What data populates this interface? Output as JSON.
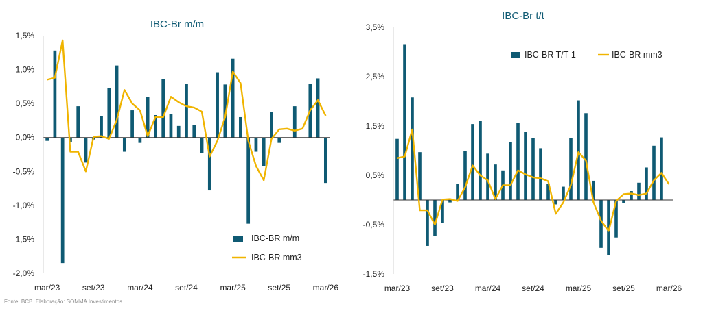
{
  "colors": {
    "bar": "#0f5a73",
    "line": "#f0b400",
    "axis": "#333333",
    "title": "#0f5a73",
    "text": "#222222"
  },
  "source_note": "Fonte: BCB. Elaboração: SOMMA Investimentos.",
  "chart_data": [
    {
      "type": "bar",
      "title": "IBC-Br m/m",
      "ylim": [
        -2.0,
        1.5
      ],
      "yticks": [
        1.5,
        1.0,
        0.5,
        0.0,
        -0.5,
        -1.0,
        -1.5,
        -2.0
      ],
      "ytick_labels": [
        "1,5%",
        "1,0%",
        "0,5%",
        "0,0%",
        "-0,5%",
        "-1,0%",
        "-1,5%",
        "-2,0%"
      ],
      "x_labels": [
        "mar/23",
        "set/23",
        "mar/24",
        "set/24",
        "mar/25",
        "set/25",
        "mar/26"
      ],
      "x_label_index": [
        0,
        6,
        12,
        18,
        24,
        30,
        36
      ],
      "legend_position": "bottom-right",
      "grid": false,
      "series": [
        {
          "name": "IBC-BR m/m",
          "kind": "bar",
          "values": [
            -0.05,
            1.28,
            -1.85,
            -0.07,
            0.46,
            -0.37,
            -0.03,
            0.31,
            0.73,
            1.06,
            -0.21,
            0.4,
            -0.08,
            0.6,
            0.33,
            0.86,
            0.35,
            0.17,
            0.79,
            0.18,
            -0.23,
            -0.78,
            0.96,
            0.78,
            1.16,
            0.3,
            -1.27,
            -0.21,
            -0.42,
            0.38,
            -0.08,
            0.0,
            0.46,
            -0.01,
            0.79,
            0.87,
            -0.67
          ]
        },
        {
          "name": "IBC-BR mm3",
          "kind": "line",
          "values": [
            0.85,
            0.88,
            1.43,
            -0.21,
            -0.21,
            -0.5,
            0.01,
            0.02,
            -0.02,
            0.26,
            0.7,
            0.5,
            0.4,
            0.02,
            0.3,
            0.3,
            0.6,
            0.52,
            0.46,
            0.44,
            0.38,
            -0.28,
            -0.05,
            0.3,
            0.97,
            0.8,
            -0.05,
            -0.42,
            -0.63,
            -0.02,
            0.12,
            0.13,
            0.1,
            0.13,
            0.4,
            0.55,
            0.32
          ]
        }
      ]
    },
    {
      "type": "bar",
      "title": "IBC-Br t/t",
      "ylim": [
        -1.5,
        3.5
      ],
      "yticks": [
        3.5,
        2.5,
        1.5,
        0.5,
        -0.5,
        -1.5
      ],
      "ytick_labels": [
        "3,5%",
        "2,5%",
        "1,5%",
        "0,5%",
        "-0,5%",
        "-1,5%"
      ],
      "x_labels": [
        "mar/23",
        "set/23",
        "mar/24",
        "set/24",
        "mar/25",
        "set/25",
        "mar/26"
      ],
      "x_label_index": [
        0,
        6,
        12,
        18,
        24,
        30,
        36
      ],
      "legend_position": "top-right",
      "grid": false,
      "series": [
        {
          "name": "IBC-BR T/T-1",
          "kind": "bar",
          "values": [
            1.24,
            3.16,
            2.08,
            0.97,
            -0.93,
            -0.73,
            -0.47,
            -0.05,
            0.32,
            0.99,
            1.54,
            1.6,
            0.94,
            0.72,
            0.6,
            1.17,
            1.56,
            1.38,
            1.26,
            1.05,
            0.32,
            -0.09,
            0.27,
            1.25,
            2.02,
            1.76,
            0.39,
            -0.97,
            -1.12,
            -0.76,
            -0.06,
            0.18,
            0.35,
            0.66,
            1.1,
            1.27
          ]
        },
        {
          "name": "IBC-BR mm3",
          "kind": "line",
          "values": [
            0.85,
            0.88,
            1.43,
            -0.21,
            -0.21,
            -0.5,
            0.01,
            0.02,
            -0.02,
            0.26,
            0.7,
            0.5,
            0.4,
            0.02,
            0.3,
            0.3,
            0.6,
            0.52,
            0.46,
            0.44,
            0.38,
            -0.28,
            -0.05,
            0.3,
            0.97,
            0.8,
            -0.05,
            -0.42,
            -0.63,
            -0.02,
            0.12,
            0.13,
            0.1,
            0.13,
            0.4,
            0.55,
            0.32
          ]
        }
      ]
    }
  ]
}
